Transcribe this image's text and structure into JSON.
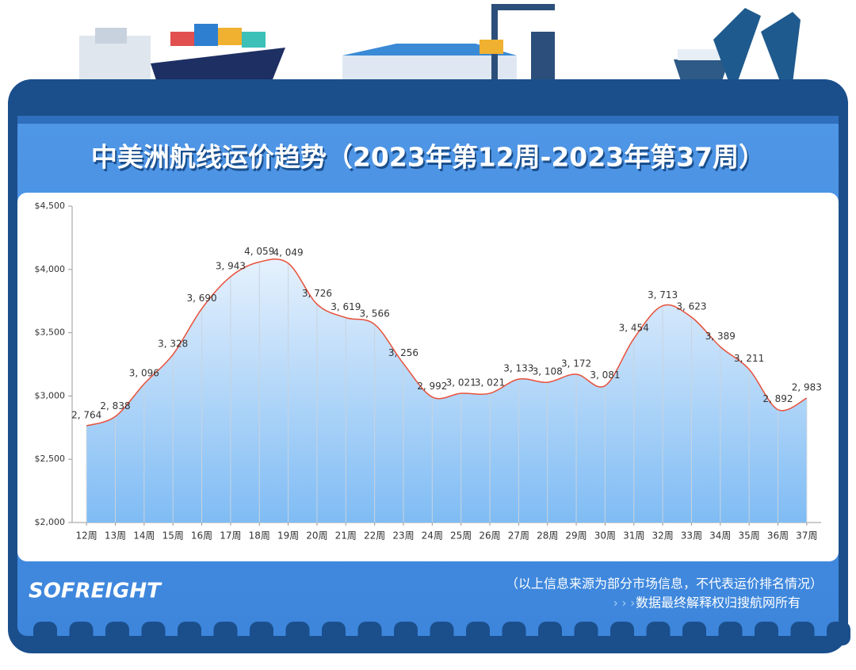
{
  "chart_data": {
    "type": "line",
    "title": "中美洲航线运价趋势（2023年第12周-2023年第37周）",
    "categories": [
      "12周",
      "13周",
      "14周",
      "15周",
      "16周",
      "17周",
      "18周",
      "19周",
      "20周",
      "21周",
      "22周",
      "23周",
      "24周",
      "25周",
      "26周",
      "27周",
      "28周",
      "29周",
      "30周",
      "31周",
      "32周",
      "33周",
      "34周",
      "35周",
      "36周",
      "37周"
    ],
    "values": [
      2764,
      2838,
      3096,
      3328,
      3690,
      3943,
      4059,
      4049,
      3726,
      3619,
      3566,
      3256,
      2992,
      3021,
      3021,
      3133,
      3108,
      3172,
      3081,
      3454,
      3713,
      3623,
      3389,
      3211,
      2892,
      2983
    ],
    "value_labels": [
      "2, 764",
      "2, 838",
      "3, 096",
      "3, 328",
      "3, 690",
      "3, 943",
      "4, 059",
      "4, 049",
      "3, 726",
      "3, 619",
      "3, 566",
      "3, 256",
      "2, 992",
      "3, 021",
      "3, 021",
      "3, 133",
      "3, 108",
      "3, 172",
      "3, 081",
      "3, 454",
      "3, 713",
      "3, 623",
      "3, 389",
      "3, 211",
      "2, 892",
      "2, 983"
    ],
    "color": "#e8503a",
    "ylim": [
      2000,
      4500
    ],
    "yticks": [
      {
        "value": 2000,
        "label": "$2,000"
      },
      {
        "value": 2500,
        "label": "$2,500"
      },
      {
        "value": 3000,
        "label": "$3,000"
      },
      {
        "value": 3500,
        "label": "$3,500"
      },
      {
        "value": 4000,
        "label": "$4,000"
      },
      {
        "value": 4500,
        "label": "$4,500"
      }
    ],
    "logo": "SOFREIGHT",
    "note": "（以上信息来源为部分市场信息，不代表运价排名情况）",
    "copyright": "数据最终解释权归搜航网所有",
    "copyright_prefix": "› › › ›"
  }
}
